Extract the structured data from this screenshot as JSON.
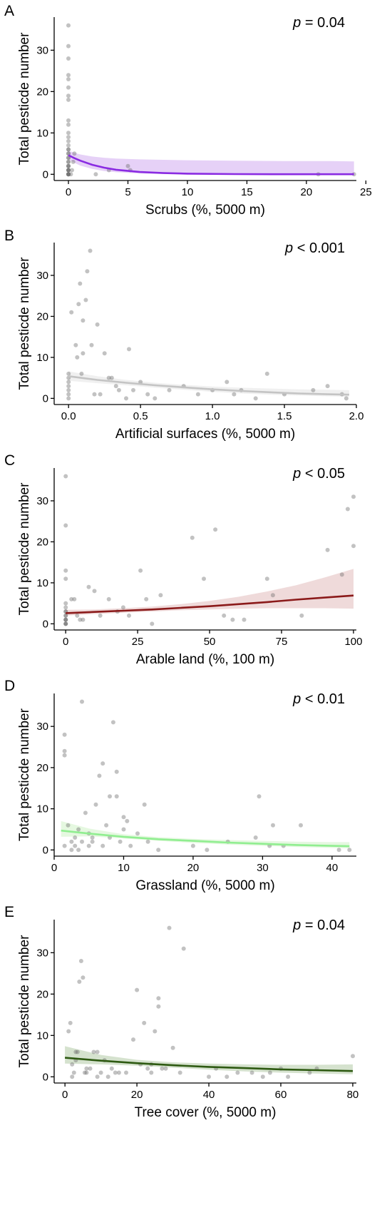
{
  "chart_data": [
    {
      "type": "scatter",
      "panel": "A",
      "xlabel": "Scrubs (%, 5000 m)",
      "ylabel": "Total pesticde number",
      "annotation": {
        "p": "p",
        "rest": " = 0.04"
      },
      "xlim": [
        -1.2,
        24.2
      ],
      "ylim": [
        -1.5,
        38
      ],
      "xticks": [
        0,
        5,
        10,
        15,
        20,
        25
      ],
      "yticks": [
        0,
        10,
        20,
        30
      ],
      "line_color": "#8a2be2",
      "band_color": "#d9b8f2",
      "fit": {
        "x": [
          0,
          0.5,
          1,
          2,
          3,
          4,
          6,
          8,
          10,
          14,
          18,
          22,
          24
        ],
        "y": [
          4.6,
          3.9,
          3.3,
          2.3,
          1.6,
          1.1,
          0.55,
          0.3,
          0.15,
          0.05,
          0.02,
          0.01,
          0.01
        ]
      },
      "band": {
        "x": [
          0,
          0.5,
          1,
          2,
          3,
          4,
          6,
          8,
          10,
          14,
          18,
          22,
          24
        ],
        "lo": [
          3.6,
          2.8,
          2.1,
          1.3,
          0.8,
          0.5,
          0.2,
          0.08,
          0.03,
          0,
          0,
          0,
          0
        ],
        "hi": [
          5.7,
          5.2,
          4.8,
          4.3,
          4.0,
          3.8,
          3.6,
          3.5,
          3.4,
          3.3,
          3.2,
          3.2,
          3.1
        ]
      },
      "points": {
        "x": [
          0,
          0,
          0,
          0,
          0,
          0,
          0,
          0,
          0,
          0,
          0,
          0,
          0,
          0,
          0,
          0,
          0,
          0,
          0,
          0,
          0,
          0,
          0,
          0,
          0,
          0,
          0,
          0,
          0,
          0,
          0,
          0,
          0,
          0,
          0.2,
          0.3,
          0.4,
          0.5,
          2.3,
          3.4,
          5.0,
          5.2,
          21,
          24
        ],
        "y": [
          36,
          31,
          28,
          24,
          23,
          21,
          19,
          18,
          13,
          12,
          10,
          9,
          8,
          7,
          6,
          6,
          5,
          5,
          4,
          4,
          3,
          3,
          2,
          2,
          2,
          1,
          1,
          1,
          1,
          0,
          0,
          0,
          0,
          0,
          0,
          1,
          3,
          5,
          0,
          1,
          2,
          1,
          0,
          0
        ]
      }
    },
    {
      "type": "scatter",
      "panel": "B",
      "xlabel": "Artificial surfaces (%, 5000 m)",
      "ylabel": "Total pesticde number",
      "annotation": {
        "p": "p",
        "rest": " < 0.001"
      },
      "xlim": [
        -0.1,
        2.0
      ],
      "ylim": [
        -1.5,
        38
      ],
      "xticks": [
        0.0,
        0.5,
        1.0,
        1.5,
        2.0
      ],
      "xtick_labels": [
        "0.0",
        "0.5",
        "1.0",
        "1.5",
        "2.0"
      ],
      "yticks": [
        0,
        10,
        20,
        30
      ],
      "line_color": "#c4c4c4",
      "band_color": "#e8e8e8",
      "fit": {
        "x": [
          0,
          0.2,
          0.4,
          0.6,
          0.8,
          1.0,
          1.2,
          1.4,
          1.6,
          1.8,
          1.95
        ],
        "y": [
          5.4,
          4.5,
          3.8,
          3.2,
          2.7,
          2.2,
          1.8,
          1.5,
          1.2,
          1.0,
          0.9
        ]
      },
      "band": {
        "x": [
          0,
          0.2,
          0.4,
          0.6,
          0.8,
          1.0,
          1.2,
          1.4,
          1.6,
          1.8,
          1.95
        ],
        "lo": [
          4.3,
          3.7,
          3.2,
          2.6,
          2.1,
          1.6,
          1.2,
          0.9,
          0.7,
          0.5,
          0.4
        ],
        "hi": [
          6.6,
          5.4,
          4.5,
          3.8,
          3.3,
          2.9,
          2.6,
          2.4,
          2.2,
          2.1,
          2.0
        ]
      },
      "points": {
        "x": [
          0,
          0,
          0,
          0,
          0,
          0,
          0,
          0.02,
          0.05,
          0.08,
          0.1,
          0.12,
          0.15,
          0.07,
          0.1,
          0.13,
          0.16,
          0.2,
          0.25,
          0.28,
          0.3,
          0.33,
          0.35,
          0.4,
          0.42,
          0.45,
          0.5,
          0.55,
          0.6,
          0.7,
          0.8,
          0.9,
          1.0,
          1.1,
          1.15,
          1.2,
          1.3,
          1.38,
          1.5,
          1.7,
          1.8,
          1.9,
          1.93,
          0.06,
          0.09,
          0.18,
          0.22
        ],
        "y": [
          0,
          1,
          2,
          3,
          4,
          5,
          6,
          21,
          13,
          28,
          11,
          24,
          36,
          23,
          19,
          31,
          13,
          18,
          11,
          5,
          5,
          3,
          2,
          0,
          12,
          2,
          4,
          1,
          0,
          2,
          3,
          1,
          2,
          4,
          1,
          2,
          0,
          6,
          1,
          2,
          3,
          1,
          0,
          10,
          6,
          1,
          1
        ]
      }
    },
    {
      "type": "scatter",
      "panel": "C",
      "xlabel": "Arable land (%, 100 m)",
      "ylabel": "Total pesticde number",
      "annotation": {
        "p": "p",
        "rest": " < 0.05"
      },
      "xlim": [
        -4,
        101
      ],
      "ylim": [
        -1.5,
        38
      ],
      "xticks": [
        0,
        25,
        50,
        75,
        100
      ],
      "yticks": [
        0,
        10,
        20,
        30
      ],
      "line_color": "#8b1a1a",
      "band_color": "#e6c6c6",
      "fit": {
        "x": [
          0,
          10,
          20,
          30,
          40,
          50,
          60,
          70,
          80,
          90,
          100
        ],
        "y": [
          2.6,
          2.9,
          3.2,
          3.5,
          3.9,
          4.3,
          4.8,
          5.3,
          5.9,
          6.4,
          6.9
        ]
      },
      "band": {
        "x": [
          0,
          10,
          20,
          30,
          40,
          50,
          60,
          70,
          80,
          90,
          100
        ],
        "lo": [
          2.0,
          2.4,
          2.7,
          3.0,
          3.3,
          3.5,
          3.7,
          3.8,
          3.8,
          3.8,
          3.7
        ],
        "hi": [
          3.4,
          3.5,
          3.8,
          4.2,
          4.8,
          5.6,
          6.6,
          7.9,
          9.4,
          11.3,
          13.4
        ]
      },
      "points": {
        "x": [
          0,
          0,
          0,
          0,
          0,
          0,
          0,
          0,
          0,
          0,
          0,
          0,
          0,
          0,
          0,
          0,
          2,
          3,
          4,
          5,
          6,
          8,
          10,
          12,
          15,
          18,
          20,
          22,
          26,
          28,
          30,
          33,
          44,
          48,
          52,
          55,
          58,
          62,
          70,
          72,
          82,
          91,
          96,
          98,
          100,
          100
        ],
        "y": [
          36,
          24,
          13,
          11,
          5,
          4,
          3,
          3,
          2,
          2,
          1,
          1,
          1,
          0,
          0,
          0,
          6,
          6,
          2,
          1,
          1,
          9,
          8,
          2,
          6,
          3,
          4,
          2,
          13,
          6,
          0,
          7,
          21,
          11,
          23,
          2,
          1,
          1,
          11,
          7,
          2,
          18,
          12,
          28,
          31,
          19
        ]
      }
    },
    {
      "type": "scatter",
      "panel": "D",
      "xlabel": "Grassland (%, 5000 m)",
      "ylabel": "Total pesticde number",
      "annotation": {
        "p": "p",
        "rest": " < 0.01"
      },
      "xlim": [
        0,
        43.5
      ],
      "ylim": [
        -1.5,
        38
      ],
      "xticks": [
        0,
        10,
        20,
        30,
        40
      ],
      "yticks": [
        0,
        10,
        20,
        30
      ],
      "line_color": "#90ee90",
      "band_color": "#d7f5d0",
      "fit": {
        "x": [
          1,
          5,
          10,
          15,
          20,
          25,
          30,
          35,
          40,
          42.5
        ],
        "y": [
          4.7,
          4.0,
          3.2,
          2.6,
          2.2,
          1.8,
          1.5,
          1.2,
          1.0,
          0.9
        ]
      },
      "band": {
        "x": [
          1,
          5,
          10,
          15,
          20,
          25,
          30,
          35,
          40,
          42.5
        ],
        "lo": [
          3.2,
          3.3,
          2.8,
          2.2,
          1.7,
          1.3,
          1.0,
          0.7,
          0.5,
          0.4
        ],
        "hi": [
          7.0,
          5.2,
          3.8,
          3.1,
          2.7,
          2.4,
          2.2,
          2.0,
          1.9,
          1.9
        ]
      },
      "points": {
        "x": [
          1.5,
          1.5,
          1.5,
          1.5,
          2,
          2.5,
          3,
          3,
          3.5,
          4,
          4,
          4.5,
          5,
          5,
          5.5,
          6,
          6.5,
          7,
          7,
          7.5,
          8,
          8,
          8.5,
          9,
          9,
          9.5,
          10,
          10,
          10.5,
          11,
          12,
          13,
          13.5,
          15,
          20,
          22,
          25,
          29,
          29.5,
          31,
          31.5,
          33,
          35.5,
          41,
          42.5,
          2.5,
          3.5,
          5.5
        ],
        "y": [
          28,
          24,
          23,
          1,
          6,
          2,
          3,
          1,
          0,
          36,
          2,
          9,
          1,
          4,
          3,
          11,
          18,
          21,
          1,
          6,
          13,
          3,
          31,
          19,
          13,
          2,
          8,
          5,
          7,
          1,
          4,
          11,
          2,
          0,
          1,
          0,
          2,
          3,
          13,
          1,
          6,
          1,
          6,
          0,
          0,
          0,
          5,
          2
        ]
      }
    },
    {
      "type": "scatter",
      "panel": "E",
      "xlabel": "Tree cover (%, 5000 m)",
      "ylabel": "Total pesticde number",
      "annotation": {
        "p": "p",
        "rest": " = 0.04"
      },
      "xlim": [
        -3,
        81
      ],
      "ylim": [
        -1.5,
        38
      ],
      "xticks": [
        0,
        20,
        40,
        60,
        80
      ],
      "yticks": [
        0,
        10,
        20,
        30
      ],
      "line_color": "#2e5a12",
      "band_color": "#bfd3b4",
      "fit": {
        "x": [
          0,
          10,
          20,
          30,
          40,
          50,
          60,
          70,
          80
        ],
        "y": [
          4.6,
          3.9,
          3.3,
          2.8,
          2.4,
          2.1,
          1.8,
          1.6,
          1.4
        ]
      },
      "band": {
        "x": [
          0,
          10,
          20,
          30,
          40,
          50,
          60,
          70,
          80
        ],
        "lo": [
          3.2,
          3.0,
          2.7,
          2.2,
          1.7,
          1.3,
          1.0,
          0.8,
          0.6
        ],
        "hi": [
          7.4,
          5.3,
          4.1,
          3.5,
          3.2,
          3.0,
          2.9,
          2.9,
          3.0
        ]
      },
      "points": {
        "x": [
          1,
          1.5,
          2,
          2.5,
          3,
          3.5,
          4,
          4.5,
          5,
          5.5,
          6,
          7,
          8,
          9,
          10,
          11,
          12,
          13,
          15,
          17,
          19,
          20,
          21,
          22,
          23,
          24,
          25,
          26,
          26,
          27,
          28,
          29,
          30,
          32,
          33,
          40,
          42,
          45,
          48,
          52,
          55,
          57,
          60,
          62,
          68,
          70,
          80,
          2,
          6,
          14,
          24,
          3,
          9
        ],
        "y": [
          11,
          13,
          3,
          1,
          6,
          6,
          23,
          28,
          24,
          1,
          1,
          2,
          6,
          6,
          1,
          4,
          0,
          2,
          1,
          1,
          9,
          21,
          3,
          13,
          2,
          1,
          11,
          19,
          17,
          2,
          2,
          36,
          7,
          1,
          31,
          0,
          2,
          0,
          1,
          1,
          0,
          1,
          2,
          0,
          1,
          2,
          5,
          0,
          2,
          1,
          3,
          4,
          0
        ]
      }
    }
  ]
}
